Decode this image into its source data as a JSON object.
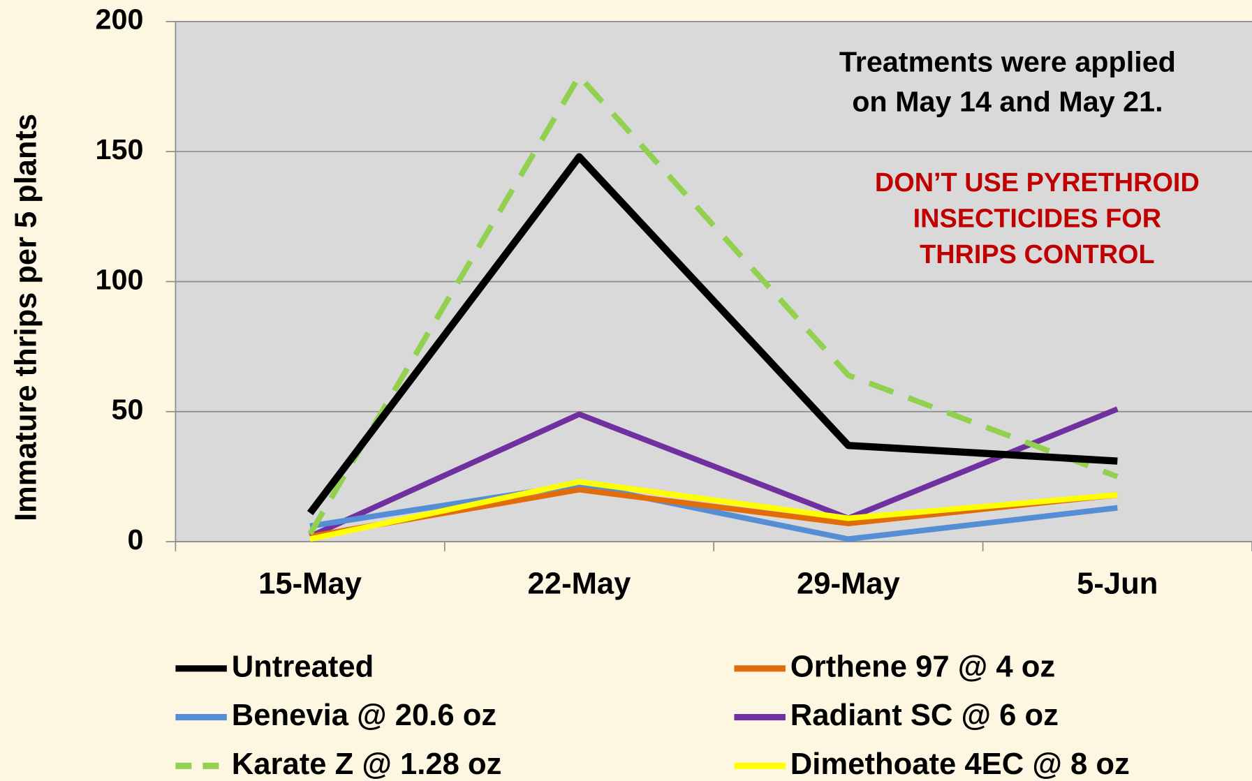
{
  "chart_data": {
    "type": "line",
    "y_label": "Immature thrips per 5 plants",
    "categories": [
      "15-May",
      "22-May",
      "29-May",
      "5-Jun"
    ],
    "series": [
      {
        "name": "Untreated",
        "color": "#000000",
        "values": [
          11,
          148,
          37,
          31
        ]
      },
      {
        "name": "Orthene 97 @ 4 oz",
        "color": "#e36c0a",
        "values": [
          2,
          20,
          7,
          18
        ]
      },
      {
        "name": "Benevia @ 20.6 oz",
        "color": "#558ed5",
        "values": [
          6,
          22,
          1,
          13
        ]
      },
      {
        "name": "Radiant SC @ 6 oz",
        "color": "#7030a0",
        "values": [
          2,
          49,
          9,
          51
        ]
      },
      {
        "name": "Karate Z @ 1.28 oz",
        "color": "#92d050",
        "dashed": true,
        "values": [
          3,
          179,
          64,
          25
        ]
      },
      {
        "name": "Dimethoate 4EC @ 8 oz",
        "color": "#ffff00",
        "values": [
          1,
          23,
          9,
          18
        ]
      }
    ],
    "ylim": [
      0,
      200
    ],
    "yticks": [
      0,
      50,
      100,
      150,
      200
    ],
    "grid": true,
    "annotation": [
      "Treatments were applied",
      "on May 14 and May 21."
    ],
    "warning": {
      "color": "#c00000",
      "lines": [
        "DON’T USE PYRETHROID",
        "INSECTICIDES FOR",
        "THRIPS CONTROL"
      ]
    }
  }
}
